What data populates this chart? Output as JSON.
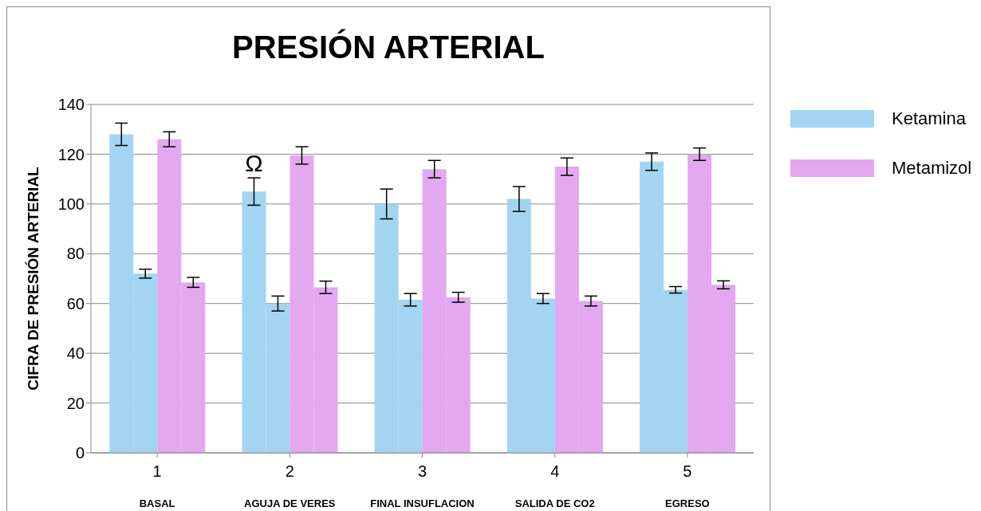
{
  "chart_data": {
    "type": "bar",
    "title": "PRESIÓN ARTERIAL",
    "ylabel": "CIFRA DE PRESIÓN ARTERIAL",
    "categories": [
      "1\nBASAL",
      "2\nAGUJA DE VERES",
      "3\nFINAL  INSUFLACION",
      "4\nSALIDA DE CO2",
      "5\nEGRESO"
    ],
    "series": [
      {
        "name": "Ketamina",
        "color": "#a3d4f2",
        "values": [
          128,
          105,
          100,
          102,
          117
        ],
        "errors": [
          4.5,
          5.5,
          6,
          5,
          3.5
        ]
      },
      {
        "color": "#a3d4f2",
        "values": [
          72,
          60,
          61.5,
          62,
          65.5
        ],
        "errors": [
          1.8,
          3,
          2.5,
          2,
          1.3
        ]
      },
      {
        "name": "Metamizol",
        "color": "#e3a8ef",
        "values": [
          126,
          119.5,
          114,
          115,
          120
        ],
        "errors": [
          3,
          3.5,
          3.5,
          3.5,
          2.5
        ]
      },
      {
        "color": "#e3a8ef",
        "values": [
          68.5,
          66.5,
          62.5,
          61,
          67.5
        ],
        "errors": [
          2,
          2.5,
          2,
          2,
          1.6
        ]
      }
    ],
    "ylim": [
      0,
      140
    ],
    "yticks": [
      0,
      20,
      40,
      60,
      80,
      100,
      120,
      140
    ],
    "grid": "y",
    "legend": "right",
    "annotations": [
      {
        "text": "Ω",
        "x": "2\nAGUJA DE VERES",
        "y": 112
      }
    ]
  }
}
